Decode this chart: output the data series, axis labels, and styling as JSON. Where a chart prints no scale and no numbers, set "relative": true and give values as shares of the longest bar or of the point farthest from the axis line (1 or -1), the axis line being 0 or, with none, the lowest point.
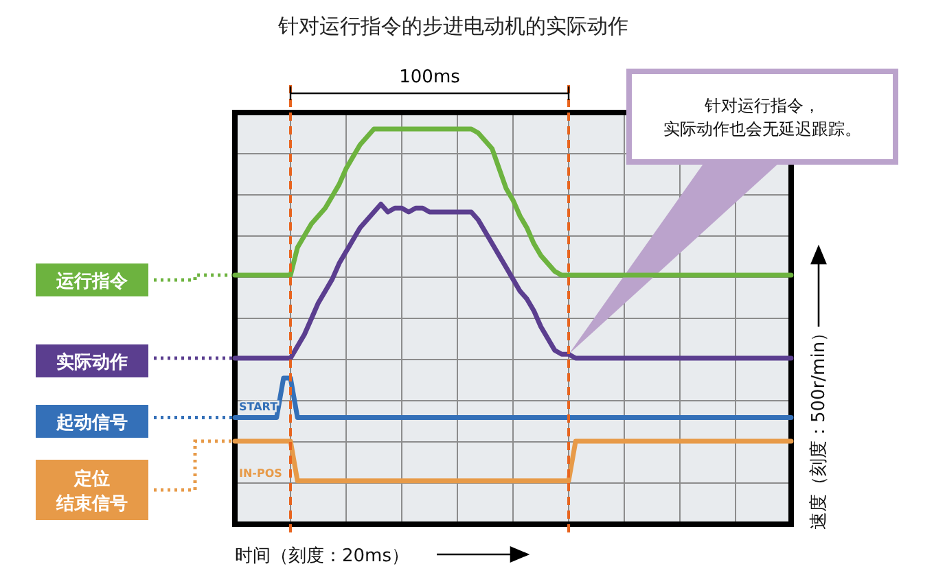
{
  "chart_data": {
    "type": "line",
    "title": "针对运行指令的步进电动机的实际动作",
    "xlabel": "时间（刻度：20ms）",
    "ylabel": "速度（刻度：500r/min）",
    "relative": true,
    "categories": [
      null,
      null,
      null,
      null,
      null,
      null,
      null,
      null,
      null,
      null,
      null,
      null,
      null,
      null,
      null,
      null,
      null,
      null,
      null,
      null,
      null,
      null,
      null,
      null,
      null,
      null,
      null,
      null,
      null,
      null,
      null,
      null,
      null,
      null,
      null,
      null,
      null,
      null,
      null,
      null,
      null,
      null,
      null,
      null,
      null,
      null,
      null,
      null,
      null,
      null,
      null,
      null,
      null,
      null,
      null,
      null,
      null,
      null,
      null,
      null,
      null,
      null,
      null,
      null,
      null,
      null,
      null,
      null,
      null,
      null,
      null,
      null,
      null,
      null,
      null,
      null,
      null,
      null,
      null,
      null,
      null
    ],
    "grid": true,
    "legend": "left",
    "marker": "none",
    "line_style": "solid",
    "series": [
      {
        "name": "运行指令",
        "color": "#6db33f",
        "values": [
          0.63,
          0.63,
          0.63,
          0.63,
          0.63,
          0.63,
          0.63,
          0.63,
          0.63,
          0.7,
          0.73,
          0.76,
          0.78,
          0.8,
          0.83,
          0.86,
          0.9,
          0.93,
          0.96,
          0.98,
          1,
          1,
          1,
          1,
          1,
          1,
          1,
          1,
          1,
          1,
          1,
          1,
          1,
          1,
          1,
          0.99,
          0.97,
          0.95,
          0.9,
          0.85,
          0.82,
          0.78,
          0.75,
          0.71,
          0.68,
          0.66,
          0.64,
          0.63,
          0.63,
          0.63,
          0.63,
          0.63,
          0.63,
          0.63,
          0.63,
          0.63,
          0.63,
          0.63,
          0.63,
          0.63,
          0.63,
          0.63,
          0.63,
          0.63,
          0.63,
          0.63,
          0.63,
          0.63,
          0.63,
          0.63,
          0.63,
          0.63,
          0.63,
          0.63,
          0.63,
          0.63,
          0.63,
          0.63,
          0.63,
          0.63,
          0.63
        ]
      },
      {
        "name": "实际动作",
        "color": "#5b3e8f",
        "values": [
          0.42,
          0.42,
          0.42,
          0.42,
          0.42,
          0.42,
          0.42,
          0.42,
          0.42,
          0.45,
          0.48,
          0.52,
          0.56,
          0.59,
          0.62,
          0.66,
          0.69,
          0.72,
          0.75,
          0.77,
          0.79,
          0.81,
          0.79,
          0.8,
          0.8,
          0.79,
          0.8,
          0.8,
          0.79,
          0.79,
          0.79,
          0.79,
          0.79,
          0.79,
          0.79,
          0.77,
          0.74,
          0.71,
          0.68,
          0.65,
          0.62,
          0.59,
          0.57,
          0.54,
          0.5,
          0.47,
          0.44,
          0.43,
          0.43,
          0.42,
          0.42,
          0.42,
          0.42,
          0.42,
          0.42,
          0.42,
          0.42,
          0.42,
          0.42,
          0.42,
          0.42,
          0.42,
          0.42,
          0.42,
          0.42,
          0.42,
          0.42,
          0.42,
          0.42,
          0.42,
          0.42,
          0.42,
          0.42,
          0.42,
          0.42,
          0.42,
          0.42,
          0.42,
          0.42,
          0.42,
          0.42
        ]
      },
      {
        "name": "起动信号",
        "color": "#3470b8",
        "values": [
          0.27,
          0.27,
          0.27,
          0.27,
          0.27,
          0.27,
          0.27,
          0.37,
          0.37,
          0.27,
          0.27,
          0.27,
          0.27,
          0.27,
          0.27,
          0.27,
          0.27,
          0.27,
          0.27,
          0.27,
          0.27,
          0.27,
          0.27,
          0.27,
          0.27,
          0.27,
          0.27,
          0.27,
          0.27,
          0.27,
          0.27,
          0.27,
          0.27,
          0.27,
          0.27,
          0.27,
          0.27,
          0.27,
          0.27,
          0.27,
          0.27,
          0.27,
          0.27,
          0.27,
          0.27,
          0.27,
          0.27,
          0.27,
          0.27,
          0.27,
          0.27,
          0.27,
          0.27,
          0.27,
          0.27,
          0.27,
          0.27,
          0.27,
          0.27,
          0.27,
          0.27,
          0.27,
          0.27,
          0.27,
          0.27,
          0.27,
          0.27,
          0.27,
          0.27,
          0.27,
          0.27,
          0.27,
          0.27,
          0.27,
          0.27,
          0.27,
          0.27,
          0.27,
          0.27,
          0.27,
          0.27
        ]
      },
      {
        "name": "定位结束信号",
        "color": "#e79a48",
        "values": [
          0.21,
          0.21,
          0.21,
          0.21,
          0.21,
          0.21,
          0.21,
          0.21,
          0.21,
          0.11,
          0.11,
          0.11,
          0.11,
          0.11,
          0.11,
          0.11,
          0.11,
          0.11,
          0.11,
          0.11,
          0.11,
          0.11,
          0.11,
          0.11,
          0.11,
          0.11,
          0.11,
          0.11,
          0.11,
          0.11,
          0.11,
          0.11,
          0.11,
          0.11,
          0.11,
          0.11,
          0.11,
          0.11,
          0.11,
          0.11,
          0.11,
          0.11,
          0.11,
          0.11,
          0.11,
          0.11,
          0.11,
          0.11,
          0.11,
          0.21,
          0.21,
          0.21,
          0.21,
          0.21,
          0.21,
          0.21,
          0.21,
          0.21,
          0.21,
          0.21,
          0.21,
          0.21,
          0.21,
          0.21,
          0.21,
          0.21,
          0.21,
          0.21,
          0.21,
          0.21,
          0.21,
          0.21,
          0.21,
          0.21,
          0.21,
          0.21,
          0.21,
          0.21,
          0.21,
          0.21,
          0.21
        ]
      }
    ],
    "annotations": [
      "100ms",
      "针对运行指令，实际动作也会无延迟跟踪。",
      "START",
      "IN-POS"
    ]
  }
}
